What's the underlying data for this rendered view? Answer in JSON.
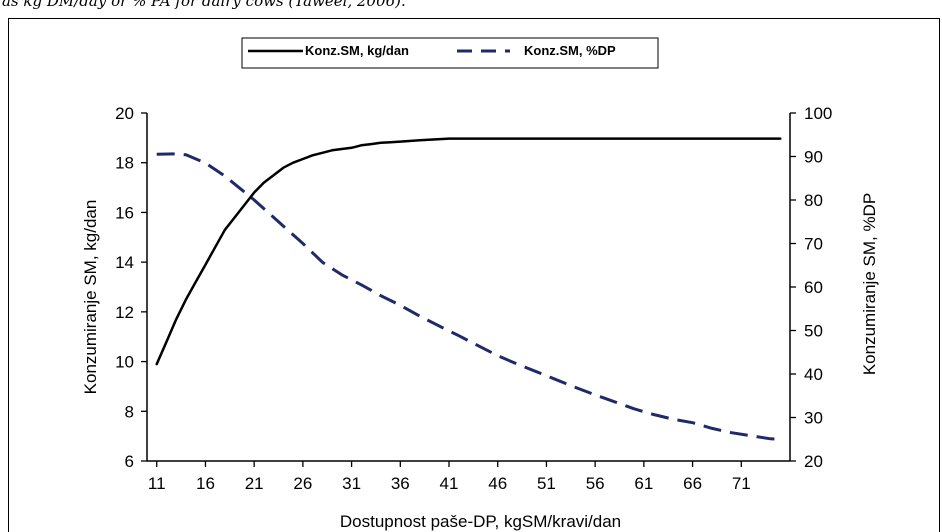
{
  "caption": "as kg DM/day or % PA for dairy cows (Taweel, 2006).",
  "chart_data": {
    "type": "line",
    "xlabel": "Dostupnost paše-DP, kgSM/kravi/dan",
    "ylabel_left": "Konzumiranje SM, kg/dan",
    "ylabel_right": "Konzumiranje SM, %DP",
    "x_ticks": [
      11,
      16,
      21,
      26,
      31,
      36,
      41,
      46,
      51,
      56,
      61,
      66,
      71
    ],
    "xlim": [
      10,
      76
    ],
    "ylim_left": [
      6,
      20
    ],
    "ylim_right": [
      20,
      100
    ],
    "yticks_left": [
      6,
      8,
      10,
      12,
      14,
      16,
      18,
      20
    ],
    "yticks_right": [
      20,
      30,
      40,
      50,
      60,
      70,
      80,
      90,
      100
    ],
    "legend_position": "top-center",
    "grid": false,
    "series": [
      {
        "name": "Konz.SM, kg/dan",
        "axis": "left",
        "style": "solid",
        "color": "#000000",
        "x": [
          11,
          12,
          13,
          14,
          15,
          16,
          17,
          18,
          19,
          20,
          21,
          22,
          23,
          24,
          25,
          26,
          27,
          28,
          29,
          30,
          31,
          32,
          33,
          34,
          35,
          36,
          38,
          41,
          46,
          51,
          56,
          61,
          66,
          71,
          75
        ],
        "y": [
          9.9,
          10.8,
          11.7,
          12.5,
          13.2,
          13.9,
          14.6,
          15.3,
          15.8,
          16.3,
          16.8,
          17.2,
          17.5,
          17.8,
          18.0,
          18.15,
          18.3,
          18.4,
          18.5,
          18.55,
          18.6,
          18.7,
          18.75,
          18.8,
          18.82,
          18.85,
          18.9,
          18.97,
          18.97,
          18.97,
          18.97,
          18.97,
          18.97,
          18.97,
          18.97
        ]
      },
      {
        "name": "Konz.SM, %DP",
        "axis": "right",
        "style": "dashed",
        "color": "#1f2a6b",
        "x": [
          11,
          13,
          14,
          16,
          18,
          21,
          24,
          26,
          28,
          30,
          32,
          34,
          36,
          38,
          40,
          42,
          44,
          46,
          48,
          50,
          52,
          54,
          56,
          58,
          60,
          62,
          64,
          66,
          68,
          70,
          72,
          74,
          75
        ],
        "y": [
          90.5,
          90.6,
          90.4,
          88.5,
          85.5,
          80,
          74,
          70,
          65.7,
          62.8,
          60.5,
          58,
          55.8,
          53.3,
          51,
          48.8,
          46.5,
          44.2,
          42.3,
          40.5,
          38.7,
          36.9,
          35.2,
          33.6,
          32.0,
          30.7,
          29.6,
          28.8,
          27.5,
          26.5,
          25.8,
          25.1,
          25.0
        ]
      }
    ]
  }
}
